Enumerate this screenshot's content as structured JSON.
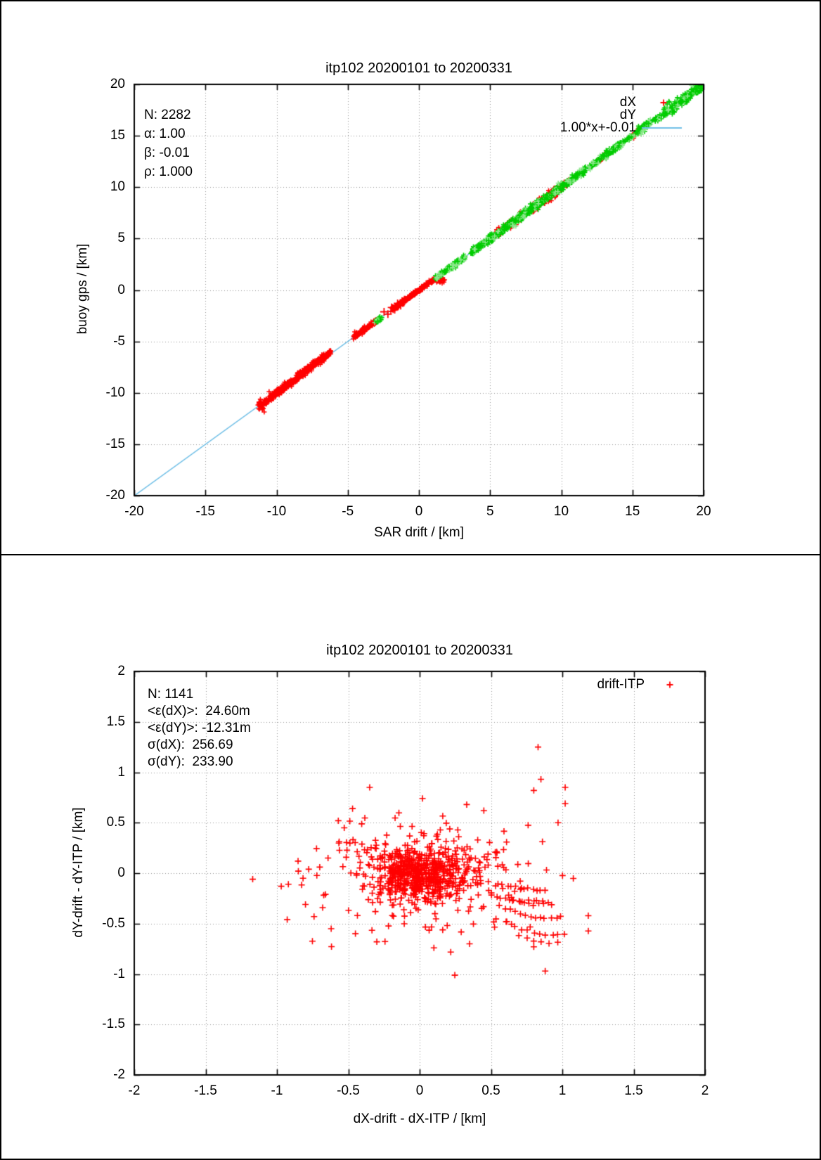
{
  "plot1": {
    "title": "itp102 20200101 to 20200331",
    "xlabel": "SAR drift / [km]",
    "ylabel": "buoy gps / [km]",
    "stats": [
      "N: 2282",
      "α: 1.00",
      "β: -0.01",
      "ρ: 1.000"
    ],
    "legend": [
      {
        "label": "dX",
        "color": "#ff0000",
        "type": "point"
      },
      {
        "label": "dY",
        "color": "#00cc00",
        "type": "point"
      },
      {
        "label": "1.00*x+-0.01",
        "color": "#6ebee6",
        "type": "line"
      }
    ],
    "chart_data": {
      "type": "scatter",
      "xlim": [
        -20,
        20
      ],
      "ylim": [
        -20,
        20
      ],
      "xticks": [
        -20,
        -15,
        -10,
        -5,
        0,
        5,
        10,
        15,
        20
      ],
      "yticks": [
        -20,
        -15,
        -10,
        -5,
        0,
        5,
        10,
        15,
        20
      ],
      "grid": true,
      "fit_line": {
        "slope": 1.0,
        "intercept": -0.01,
        "color": "#6ebee6",
        "label": "1.00*x+-0.01"
      },
      "series": [
        {
          "name": "dX",
          "color": "#ff0000",
          "runs": [
            {
              "x0": -11.3,
              "x1": -10.4,
              "n": 50,
              "jitter": 0.3
            },
            {
              "x0": -10.45,
              "x1": -9.4,
              "n": 110,
              "jitter": 0.17
            },
            {
              "x0": -9.4,
              "x1": -8.55,
              "n": 85,
              "jitter": 0.15
            },
            {
              "x0": -8.55,
              "x1": -7.4,
              "n": 120,
              "jitter": 0.18,
              "dy": 0.08
            },
            {
              "x0": -7.4,
              "x1": -6.2,
              "n": 110,
              "jitter": 0.15,
              "dy": 0.12
            },
            {
              "x0": -4.55,
              "x1": -3.75,
              "n": 65,
              "jitter": 0.15
            },
            {
              "x0": -3.75,
              "x1": -2.95,
              "n": 45,
              "jitter": 0.12
            },
            {
              "x0": -1.95,
              "x1": -0.6,
              "n": 100,
              "jitter": 0.11
            },
            {
              "x0": -0.6,
              "x1": 0.35,
              "n": 80,
              "jitter": 0.1
            },
            {
              "x0": 0.35,
              "x1": 1.15,
              "n": 55,
              "jitter": 0.09
            },
            {
              "x0": 5.3,
              "x1": 6.3,
              "n": 45,
              "jitter": 0.18
            },
            {
              "x0": 6.3,
              "x1": 7.3,
              "n": 70,
              "jitter": 0.2
            },
            {
              "x0": 7.9,
              "x1": 8.6,
              "n": 40,
              "jitter": 0.18
            },
            {
              "x0": 8.6,
              "x1": 9.8,
              "n": 90,
              "jitter": 0.22
            },
            {
              "x0": 9.9,
              "x1": 10.6,
              "n": 35,
              "jitter": 0.18
            },
            {
              "x0": 12.6,
              "x1": 13.2,
              "n": 18,
              "jitter": 0.13
            },
            {
              "x0": 14.9,
              "x1": 15.6,
              "n": 30,
              "jitter": 0.15
            }
          ],
          "blobs": [
            {
              "cx": 1.5,
              "cy": 0.98,
              "sx": 0.14,
              "sy": 0.13,
              "n": 26
            }
          ],
          "big_points": [
            [
              -2.45,
              -2.12
            ],
            [
              -2.18,
              -2.35
            ],
            [
              -1.92,
              -1.7
            ],
            [
              -1.7,
              -1.92
            ],
            [
              -1.5,
              -1.3
            ],
            [
              -1.28,
              -1.52
            ]
          ]
        },
        {
          "name": "dY",
          "color": "#00cc00",
          "light_color": "#8de88d",
          "runs": [
            {
              "x0": -3.05,
              "x1": -2.62,
              "n": 30,
              "jitter": 0.1
            },
            {
              "x0": 1.15,
              "x1": 1.8,
              "n": 40,
              "jitter": 0.13
            },
            {
              "x0": 1.8,
              "x1": 3.25,
              "n": 110,
              "jitter": 0.14
            },
            {
              "x0": 3.7,
              "x1": 5.3,
              "n": 200,
              "jitter": 0.15
            },
            {
              "x0": 5.3,
              "x1": 7.3,
              "n": 190,
              "jitter": 0.18
            },
            {
              "x0": 7.3,
              "x1": 8.7,
              "n": 130,
              "jitter": 0.18
            },
            {
              "x0": 8.7,
              "x1": 10.3,
              "n": 110,
              "jitter": 0.2
            },
            {
              "x0": 10.3,
              "x1": 11.7,
              "n": 90,
              "jitter": 0.18
            },
            {
              "x0": 11.9,
              "x1": 12.7,
              "n": 40,
              "jitter": 0.15
            },
            {
              "x0": 12.9,
              "x1": 14.3,
              "n": 110,
              "jitter": 0.16
            },
            {
              "x0": 14.3,
              "x1": 15.2,
              "n": 28,
              "jitter": 0.14
            },
            {
              "x0": 15.2,
              "x1": 16.3,
              "n": 65,
              "jitter": 0.18
            },
            {
              "x0": 16.4,
              "x1": 17.1,
              "n": 22,
              "jitter": 0.15
            },
            {
              "x0": 17.2,
              "x1": 19.9,
              "n": 220,
              "jitter": 0.27
            }
          ],
          "blobs": [],
          "big_points": []
        }
      ]
    }
  },
  "plot2": {
    "title": "itp102 20200101 to 20200331",
    "xlabel": "dX-drift - dX-ITP / [km]",
    "ylabel": "dY-drift - dY-ITP / [km]",
    "stats": [
      "N: 1141",
      "<ε(dX)>:  24.60m",
      "<ε(dY)>: -12.31m",
      "σ(dX):  256.69",
      "σ(dY):  233.90"
    ],
    "legend": [
      {
        "label": "drift-ITP",
        "color": "#ff0000",
        "type": "point"
      }
    ],
    "chart_data": {
      "type": "scatter",
      "xlim": [
        -2,
        2
      ],
      "ylim": [
        -2,
        2
      ],
      "xticks": [
        -2,
        -1.5,
        -1,
        -0.5,
        0,
        0.5,
        1,
        1.5,
        2
      ],
      "yticks": [
        -2,
        -1.5,
        -1,
        -0.5,
        0,
        0.5,
        1,
        1.5,
        2
      ],
      "grid": true,
      "series": [
        {
          "name": "drift-ITP",
          "color": "#ff0000",
          "gaussians": [
            {
              "cx": 0.02,
              "cy": -0.02,
              "sx": 0.16,
              "sy": 0.12,
              "n": 480
            },
            {
              "cx": 0.0,
              "cy": -0.02,
              "sx": 0.32,
              "sy": 0.24,
              "n": 230
            },
            {
              "cx": 0.0,
              "cy": -0.05,
              "sx": 0.55,
              "sy": 0.36,
              "n": 70
            }
          ],
          "chains": [
            {
              "x0": 0.55,
              "y0": -0.1,
              "x1": 0.88,
              "y1": -0.17,
              "n": 12,
              "bend": -0.02
            },
            {
              "x0": 0.5,
              "y0": -0.22,
              "x1": 0.93,
              "y1": -0.31,
              "n": 14,
              "bend": -0.03
            },
            {
              "x0": 0.56,
              "y0": -0.33,
              "x1": 0.99,
              "y1": -0.44,
              "n": 13,
              "bend": -0.04
            },
            {
              "x0": 0.6,
              "y0": -0.47,
              "x1": 1.01,
              "y1": -0.6,
              "n": 11,
              "bend": -0.05
            },
            {
              "x0": 0.66,
              "y0": -0.28,
              "x1": 0.86,
              "y1": -0.28,
              "n": 7,
              "bend": 0.0
            },
            {
              "x0": 0.7,
              "y0": -0.62,
              "x1": 0.96,
              "y1": -0.69,
              "n": 6,
              "bend": -0.02
            }
          ],
          "points": [
            [
              -1.17,
              -0.06
            ],
            [
              -0.97,
              -0.13
            ],
            [
              -0.92,
              -0.11
            ],
            [
              -0.85,
              0.02
            ],
            [
              -0.8,
              -0.31
            ],
            [
              -0.74,
              -0.43
            ],
            [
              -0.7,
              0.06
            ],
            [
              -0.66,
              -0.21
            ],
            [
              0.83,
              1.25
            ],
            [
              0.85,
              0.93
            ],
            [
              0.8,
              0.82
            ],
            [
              1.02,
              0.85
            ],
            [
              1.02,
              0.69
            ],
            [
              0.97,
              0.5
            ],
            [
              0.88,
              -0.97
            ],
            [
              0.8,
              -0.73
            ],
            [
              -0.47,
              0.64
            ],
            [
              -0.35,
              0.85
            ],
            [
              0.02,
              0.74
            ],
            [
              -0.57,
              0.52
            ],
            [
              0.33,
              0.68
            ],
            [
              0.45,
              0.62
            ],
            [
              -0.62,
              -0.55
            ],
            [
              -0.45,
              -0.6
            ],
            [
              -0.3,
              -0.68
            ],
            [
              0.1,
              -0.74
            ],
            [
              0.35,
              -0.7
            ]
          ]
        }
      ]
    }
  }
}
